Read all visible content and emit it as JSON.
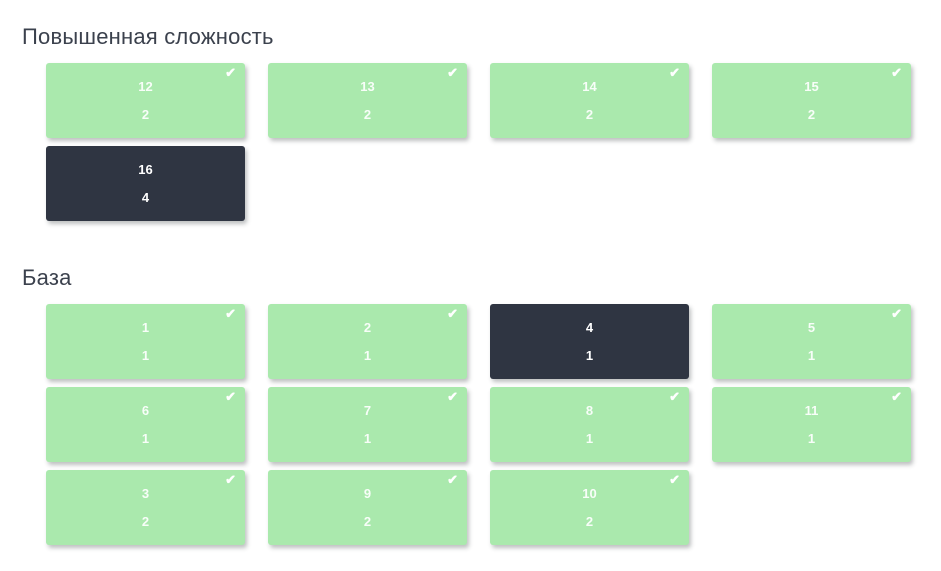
{
  "colors": {
    "background": "#ffffff",
    "card_completed_bg": "#aae9ad",
    "card_active_bg": "#2f3542",
    "card_text": "#ffffff",
    "heading_text": "#3b414d"
  },
  "icons": {
    "check": "✔"
  },
  "sections": [
    {
      "title": "Повышенная сложность",
      "cards": [
        {
          "number": "12",
          "count": "2",
          "state": "completed"
        },
        {
          "number": "13",
          "count": "2",
          "state": "completed"
        },
        {
          "number": "14",
          "count": "2",
          "state": "completed"
        },
        {
          "number": "15",
          "count": "2",
          "state": "completed"
        },
        {
          "number": "16",
          "count": "4",
          "state": "active"
        }
      ]
    },
    {
      "title": "База",
      "cards": [
        {
          "number": "1",
          "count": "1",
          "state": "completed"
        },
        {
          "number": "2",
          "count": "1",
          "state": "completed"
        },
        {
          "number": "4",
          "count": "1",
          "state": "active"
        },
        {
          "number": "5",
          "count": "1",
          "state": "completed"
        },
        {
          "number": "6",
          "count": "1",
          "state": "completed"
        },
        {
          "number": "7",
          "count": "1",
          "state": "completed"
        },
        {
          "number": "8",
          "count": "1",
          "state": "completed"
        },
        {
          "number": "11",
          "count": "1",
          "state": "completed"
        },
        {
          "number": "3",
          "count": "2",
          "state": "completed"
        },
        {
          "number": "9",
          "count": "2",
          "state": "completed"
        },
        {
          "number": "10",
          "count": "2",
          "state": "completed"
        }
      ]
    }
  ]
}
